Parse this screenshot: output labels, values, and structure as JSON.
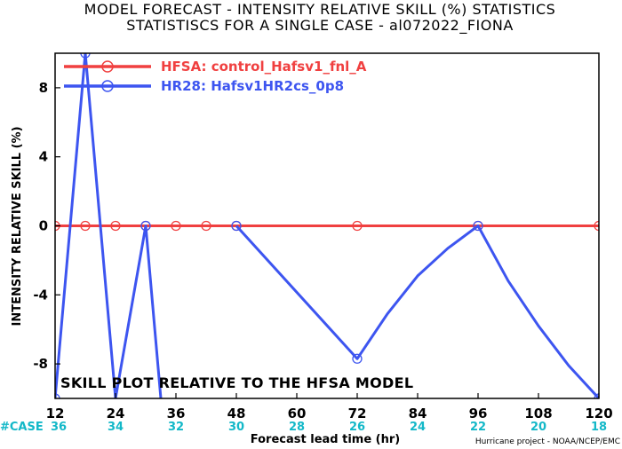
{
  "chart_data": {
    "type": "line",
    "title": "MODEL FORECAST - INTENSITY RELATIVE SKILL (%) STATISTICS",
    "subtitle": "STATISTISCS FOR A SINGLE CASE - al072022_FIONA",
    "xlabel": "Forecast lead time (hr)",
    "ylabel": "INTENSITY RELATIVE SKILL (%)",
    "xlim": [
      12,
      120
    ],
    "ylim": [
      -10,
      10
    ],
    "xticks": [
      12,
      24,
      36,
      48,
      60,
      72,
      84,
      96,
      108,
      120
    ],
    "yticks": [
      -8,
      -4,
      0,
      4,
      8
    ],
    "grid": false,
    "legend_position": "top-left",
    "annotation": "SKILL PLOT RELATIVE TO THE HFSA MODEL",
    "case_label": "#CASE",
    "case_counts": [
      "36",
      "34",
      "32",
      "30",
      "28",
      "26",
      "24",
      "22",
      "20",
      "18"
    ],
    "credit": "Hurricane project - NOAA/NCEP/EMC",
    "series": [
      {
        "name": "HFSA: control_Hafsv1_fnl_A",
        "color": "#f04040",
        "x": [
          12,
          18,
          24,
          30,
          36,
          42,
          48,
          72,
          96,
          120
        ],
        "y": [
          0,
          0,
          0,
          0,
          0,
          0,
          0,
          0,
          0,
          0
        ]
      },
      {
        "name": "HR28: Hafsv1HR2cs_0p8",
        "color": "#3d55f0",
        "x": [
          12,
          18,
          24,
          30,
          33,
          48,
          72,
          78,
          84,
          90,
          96,
          102,
          108,
          114,
          120
        ],
        "y": [
          -10.0,
          10.0,
          -10.0,
          0.0,
          -10.0,
          0.0,
          -7.7,
          -5.1,
          -2.9,
          -1.3,
          0.0,
          -3.2,
          -5.8,
          -8.1,
          -10.0
        ],
        "gaps_before_x": [
          48
        ],
        "markers_x": [
          12,
          18,
          30,
          48,
          72,
          96,
          120
        ]
      }
    ]
  }
}
